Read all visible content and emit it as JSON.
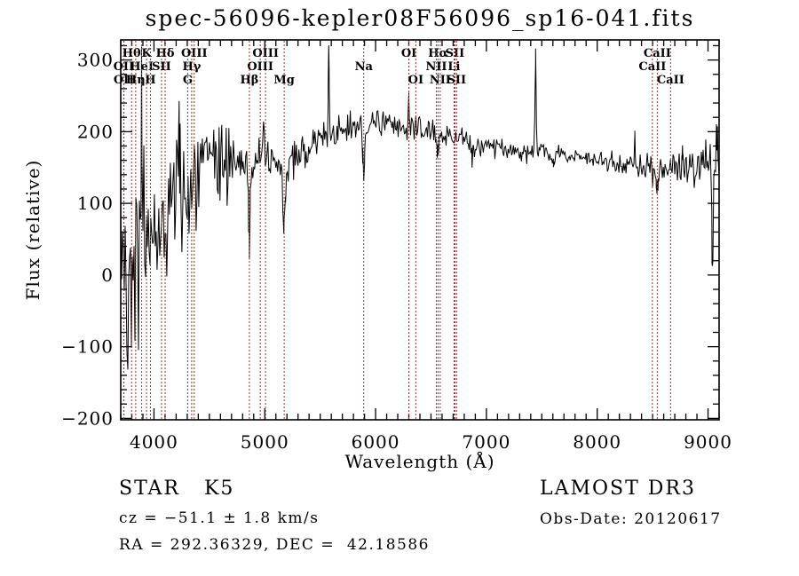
{
  "title": "spec-56096-kepler08F56096_sp16-041.fits",
  "footer": {
    "class_label": "STAR   K5",
    "survey": "LAMOST DR3",
    "cz": "cz = −51.1 ± 1.8 km/s",
    "obs_date": "Obs-Date: 20120617",
    "radec": "RA = 292.36329, DEC =  42.18586"
  },
  "chart_data": {
    "type": "line",
    "title": "spec-56096-kepler08F56096_sp16-041.fits",
    "xlabel": "Wavelength (Å)",
    "ylabel": "Flux (relative)",
    "xlim": [
      3700,
      9100
    ],
    "ylim": [
      -202,
      328
    ],
    "x_major_ticks": [
      4000,
      5000,
      6000,
      7000,
      8000,
      9000
    ],
    "x_minor_step": 100,
    "y_major_ticks": [
      -200,
      -100,
      0,
      100,
      200,
      300
    ],
    "y_minor_step": 20,
    "grid": false,
    "legend": "none",
    "line_color": "#000000",
    "axis_color": "#000000",
    "marker_line_color": "#993333",
    "noise_seed": 42,
    "sample_step_angstrom": 8,
    "continuum": [
      [
        3700,
        15
      ],
      [
        3780,
        25
      ],
      [
        3860,
        35
      ],
      [
        3940,
        48
      ],
      [
        4020,
        65
      ],
      [
        4100,
        85
      ],
      [
        4180,
        100
      ],
      [
        4260,
        112
      ],
      [
        4340,
        128
      ],
      [
        4420,
        146
      ],
      [
        4500,
        157
      ],
      [
        4600,
        162
      ],
      [
        4700,
        160
      ],
      [
        4800,
        157
      ],
      [
        4870,
        150
      ],
      [
        4950,
        163
      ],
      [
        5050,
        160
      ],
      [
        5120,
        150
      ],
      [
        5180,
        138
      ],
      [
        5250,
        155
      ],
      [
        5350,
        172
      ],
      [
        5450,
        185
      ],
      [
        5550,
        194
      ],
      [
        5650,
        198
      ],
      [
        5750,
        204
      ],
      [
        5850,
        209
      ],
      [
        5950,
        212
      ],
      [
        6050,
        212
      ],
      [
        6150,
        208
      ],
      [
        6250,
        205
      ],
      [
        6350,
        202
      ],
      [
        6450,
        200
      ],
      [
        6550,
        198
      ],
      [
        6650,
        196
      ],
      [
        6750,
        192
      ],
      [
        6850,
        186
      ],
      [
        6950,
        183
      ],
      [
        7050,
        180
      ],
      [
        7150,
        176
      ],
      [
        7250,
        173
      ],
      [
        7350,
        172
      ],
      [
        7450,
        174
      ],
      [
        7550,
        172
      ],
      [
        7650,
        170
      ],
      [
        7750,
        167
      ],
      [
        7850,
        164
      ],
      [
        7950,
        161
      ],
      [
        8050,
        159
      ],
      [
        8150,
        157
      ],
      [
        8250,
        155
      ],
      [
        8350,
        153
      ],
      [
        8450,
        150
      ],
      [
        8550,
        146
      ],
      [
        8650,
        147
      ],
      [
        8750,
        150
      ],
      [
        8850,
        151
      ],
      [
        8950,
        149
      ],
      [
        9100,
        148
      ]
    ],
    "noise_sigma": [
      [
        3700,
        85
      ],
      [
        3800,
        75
      ],
      [
        3900,
        65
      ],
      [
        4000,
        52
      ],
      [
        4100,
        45
      ],
      [
        4200,
        40
      ],
      [
        4300,
        36
      ],
      [
        4450,
        30
      ],
      [
        4600,
        26
      ],
      [
        4800,
        22
      ],
      [
        5000,
        18
      ],
      [
        5200,
        16
      ],
      [
        5400,
        13
      ],
      [
        5600,
        11
      ],
      [
        5900,
        10
      ],
      [
        6300,
        9
      ],
      [
        6700,
        8
      ],
      [
        7100,
        7
      ],
      [
        7500,
        7
      ],
      [
        7900,
        6
      ],
      [
        8300,
        7
      ],
      [
        8600,
        10
      ],
      [
        8800,
        14
      ],
      [
        9000,
        18
      ],
      [
        9100,
        22
      ]
    ],
    "features": [
      {
        "wavelength": 3888,
        "amplitude": 150,
        "width": 5
      },
      {
        "wavelength": 4227,
        "amplitude": 105,
        "width": 5
      },
      {
        "wavelength": 4861,
        "amplitude": -100,
        "width": 7
      },
      {
        "wavelength": 5175,
        "amplitude": -55,
        "width": 12
      },
      {
        "wavelength": 5577,
        "amplitude": 112,
        "width": 5
      },
      {
        "wavelength": 5893,
        "amplitude": -82,
        "width": 9
      },
      {
        "wavelength": 6300,
        "amplitude": 42,
        "width": 5
      },
      {
        "wavelength": 6563,
        "amplitude": -28,
        "width": 7
      },
      {
        "wavelength": 6870,
        "amplitude": -22,
        "width": 9
      },
      {
        "wavelength": 7444,
        "amplitude": 130,
        "width": 5
      },
      {
        "wavelength": 7605,
        "amplitude": -20,
        "width": 9
      },
      {
        "wavelength": 8340,
        "amplitude": 42,
        "width": 4
      },
      {
        "wavelength": 8542,
        "amplitude": -28,
        "width": 9
      },
      {
        "wavelength": 8770,
        "amplitude": 48,
        "width": 4
      },
      {
        "wavelength": 9040,
        "amplitude": -145,
        "width": 6
      },
      {
        "wavelength": 9085,
        "amplitude": 52,
        "width": 5
      }
    ],
    "spectral_lines": {
      "rows": [
        [
          {
            "label": "Hθ",
            "wavelength": 3798
          },
          {
            "label": "K",
            "wavelength": 3933
          },
          {
            "label": "Hδ",
            "wavelength": 4101
          },
          {
            "label": "OIII",
            "wavelength": 4363
          },
          {
            "label": "OIII",
            "wavelength": 5007
          },
          {
            "label": "OI",
            "wavelength": 6300
          },
          {
            "label": "Hα",
            "wavelength": 6563
          },
          {
            "label": "SII",
            "wavelength": 6716
          },
          {
            "label": "CaII",
            "wavelength": 8542
          }
        ],
        [
          {
            "label": "OII",
            "wavelength": 3727
          },
          {
            "label": "HeI",
            "wavelength": 3889
          },
          {
            "label": "SII",
            "wavelength": 4068
          },
          {
            "label": "Hγ",
            "wavelength": 4340
          },
          {
            "label": "OIII",
            "wavelength": 4959
          },
          {
            "label": "Na",
            "wavelength": 5893
          },
          {
            "label": "NII",
            "wavelength": 6548
          },
          {
            "label": "Li",
            "wavelength": 6708
          },
          {
            "label": "CaII",
            "wavelength": 8498
          }
        ],
        [
          {
            "label": "OII",
            "wavelength": 3729
          },
          {
            "label": "Hη",
            "wavelength": 3835
          },
          {
            "label": "H",
            "wavelength": 3968
          },
          {
            "label": "G",
            "wavelength": 4304
          },
          {
            "label": "Hβ",
            "wavelength": 4861
          },
          {
            "label": "Mg",
            "wavelength": 5175
          },
          {
            "label": "OI",
            "wavelength": 6363
          },
          {
            "label": "NII",
            "wavelength": 6583
          },
          {
            "label": "SII",
            "wavelength": 6731
          },
          {
            "label": "CaII",
            "wavelength": 8662
          }
        ]
      ]
    }
  }
}
